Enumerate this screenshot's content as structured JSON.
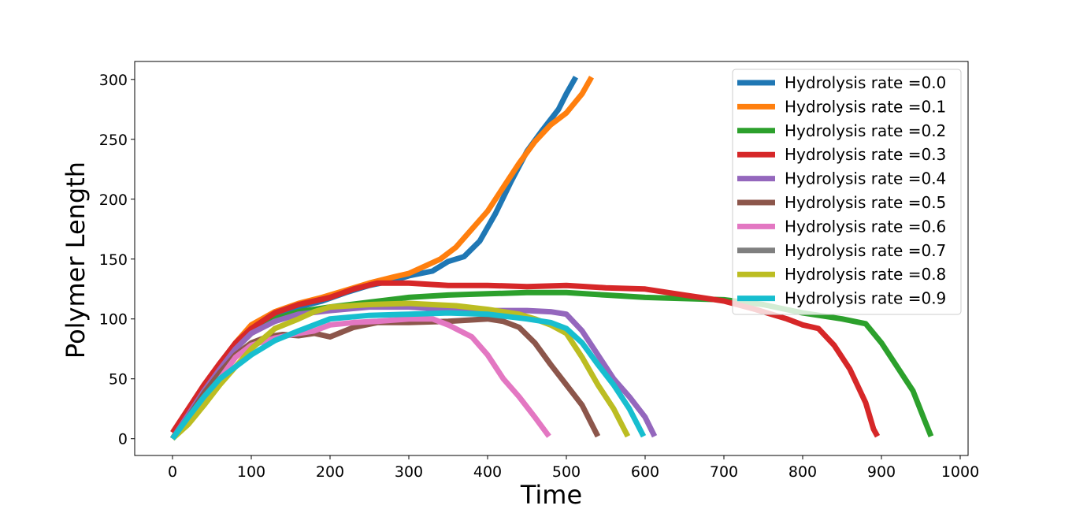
{
  "chart_data": {
    "type": "line",
    "title": "",
    "xlabel": "Time",
    "ylabel": "Polymer Length",
    "xlim": [
      -48,
      1010
    ],
    "ylim": [
      -14,
      315
    ],
    "xticks": [
      0,
      100,
      200,
      300,
      400,
      500,
      600,
      700,
      800,
      900,
      1000
    ],
    "yticks": [
      0,
      50,
      100,
      150,
      200,
      250,
      300
    ],
    "grid": false,
    "legend_position": "top-right",
    "series": [
      {
        "name": "Hydrolysis rate =0.0",
        "color": "#1f77b4",
        "x": [
          0,
          20,
          40,
          60,
          80,
          100,
          130,
          160,
          190,
          220,
          250,
          280,
          300,
          330,
          350,
          370,
          390,
          410,
          430,
          450,
          470,
          490,
          500,
          512
        ],
        "y": [
          0,
          20,
          40,
          58,
          75,
          90,
          102,
          110,
          115,
          122,
          128,
          132,
          136,
          140,
          148,
          152,
          165,
          188,
          215,
          240,
          258,
          275,
          288,
          302
        ]
      },
      {
        "name": "Hydrolysis rate =0.1",
        "color": "#ff7f0e",
        "x": [
          0,
          20,
          40,
          60,
          80,
          100,
          130,
          160,
          190,
          220,
          250,
          280,
          300,
          320,
          340,
          360,
          380,
          400,
          420,
          440,
          460,
          480,
          500,
          520,
          532
        ],
        "y": [
          0,
          22,
          42,
          62,
          80,
          95,
          106,
          113,
          118,
          124,
          130,
          135,
          138,
          144,
          150,
          160,
          175,
          190,
          210,
          230,
          248,
          262,
          272,
          288,
          302
        ]
      },
      {
        "name": "Hydrolysis rate =0.2",
        "color": "#2ca02c",
        "x": [
          0,
          20,
          40,
          60,
          80,
          100,
          130,
          160,
          200,
          250,
          300,
          350,
          400,
          450,
          500,
          550,
          600,
          650,
          700,
          750,
          800,
          850,
          880,
          900,
          920,
          940,
          955,
          963
        ],
        "y": [
          0,
          20,
          40,
          58,
          75,
          88,
          100,
          106,
          110,
          114,
          118,
          120,
          121,
          122,
          122,
          120,
          118,
          117,
          116,
          112,
          105,
          100,
          96,
          80,
          60,
          40,
          15,
          2
        ]
      },
      {
        "name": "Hydrolysis rate =0.3",
        "color": "#d62728",
        "x": [
          0,
          20,
          40,
          60,
          80,
          100,
          130,
          160,
          200,
          230,
          260,
          300,
          350,
          400,
          450,
          500,
          550,
          600,
          650,
          700,
          740,
          780,
          800,
          820,
          840,
          860,
          880,
          890,
          895
        ],
        "y": [
          5,
          25,
          45,
          63,
          80,
          92,
          105,
          112,
          118,
          125,
          130,
          130,
          128,
          128,
          127,
          128,
          126,
          125,
          120,
          115,
          108,
          100,
          95,
          92,
          78,
          58,
          30,
          8,
          2
        ]
      },
      {
        "name": "Hydrolysis rate =0.4",
        "color": "#9467bd",
        "x": [
          0,
          20,
          40,
          60,
          80,
          100,
          130,
          160,
          200,
          250,
          300,
          350,
          400,
          450,
          480,
          500,
          520,
          540,
          560,
          580,
          600,
          612
        ],
        "y": [
          0,
          20,
          40,
          58,
          75,
          88,
          98,
          104,
          107,
          110,
          110,
          108,
          107,
          107,
          106,
          104,
          90,
          70,
          50,
          35,
          18,
          2
        ]
      },
      {
        "name": "Hydrolysis rate =0.5",
        "color": "#8c564b",
        "x": [
          0,
          20,
          40,
          60,
          80,
          100,
          120,
          140,
          160,
          180,
          200,
          230,
          260,
          300,
          350,
          400,
          420,
          440,
          460,
          480,
          500,
          520,
          530,
          540
        ],
        "y": [
          0,
          18,
          38,
          55,
          70,
          80,
          85,
          87,
          86,
          88,
          85,
          93,
          97,
          97,
          98,
          100,
          98,
          93,
          80,
          62,
          45,
          28,
          15,
          2
        ]
      },
      {
        "name": "Hydrolysis rate =0.6",
        "color": "#e377c2",
        "x": [
          0,
          20,
          40,
          60,
          80,
          100,
          130,
          160,
          180,
          200,
          230,
          260,
          300,
          330,
          350,
          380,
          400,
          420,
          440,
          460,
          478
        ],
        "y": [
          0,
          15,
          32,
          50,
          68,
          78,
          84,
          88,
          90,
          95,
          97,
          98,
          100,
          100,
          95,
          85,
          70,
          50,
          35,
          18,
          2
        ]
      },
      {
        "name": "Hydrolysis rate =0.7",
        "color": "#7f7f7f",
        "x": [],
        "y": []
      },
      {
        "name": "Hydrolysis rate =0.8",
        "color": "#bcbd22",
        "x": [
          0,
          20,
          40,
          60,
          80,
          100,
          130,
          160,
          180,
          200,
          250,
          300,
          330,
          360,
          400,
          440,
          460,
          480,
          500,
          520,
          540,
          560,
          578
        ],
        "y": [
          0,
          12,
          28,
          45,
          60,
          75,
          92,
          100,
          106,
          110,
          112,
          113,
          112,
          111,
          108,
          104,
          100,
          95,
          88,
          68,
          45,
          25,
          2
        ]
      },
      {
        "name": "Hydrolysis rate =0.9",
        "color": "#17becf",
        "x": [
          0,
          20,
          40,
          60,
          80,
          100,
          130,
          160,
          200,
          250,
          300,
          350,
          400,
          450,
          480,
          500,
          520,
          540,
          560,
          580,
          598
        ],
        "y": [
          0,
          18,
          35,
          50,
          60,
          70,
          82,
          90,
          100,
          103,
          104,
          105,
          104,
          100,
          97,
          92,
          80,
          62,
          45,
          25,
          2
        ]
      }
    ]
  }
}
